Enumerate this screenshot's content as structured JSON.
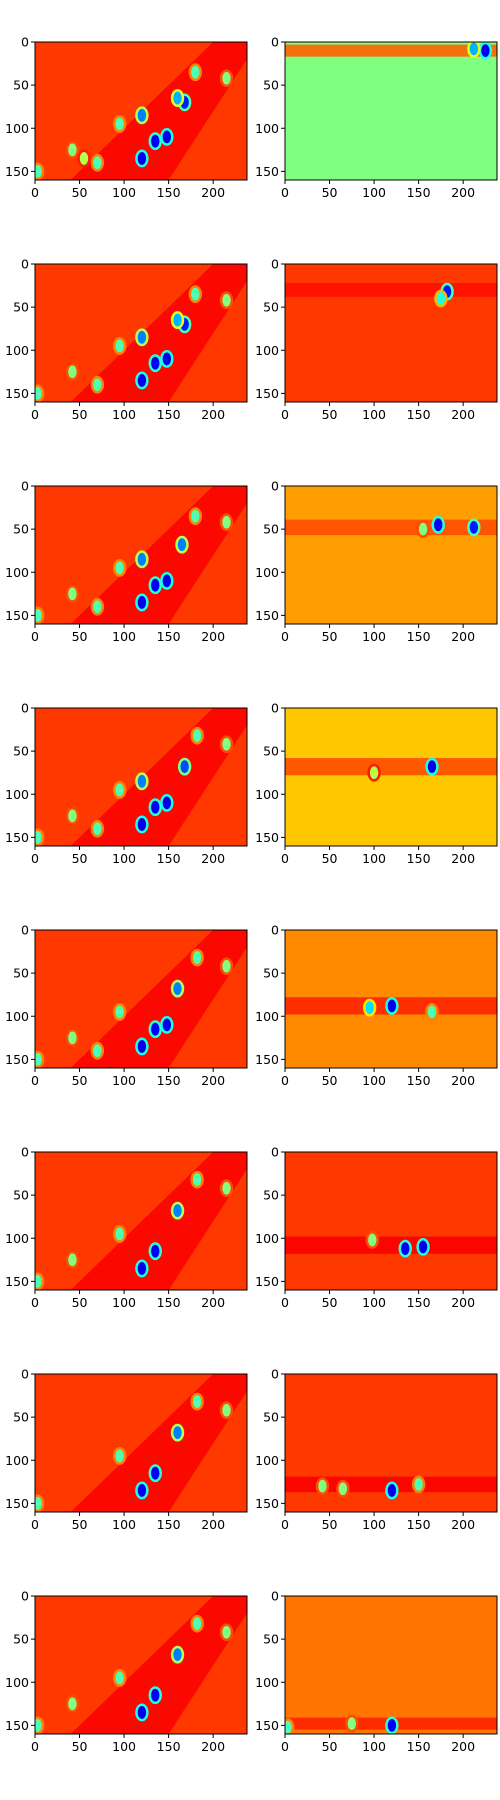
{
  "figure": {
    "rows": 8,
    "cols": 2,
    "colormap": "jet",
    "background": "#ffffff"
  },
  "chart_data": [
    {
      "type": "heatmap",
      "title": "",
      "xlabel": "",
      "ylabel": "",
      "xlim": [
        0,
        238
      ],
      "ylim": [
        160,
        0
      ],
      "xticks": [
        0,
        50,
        100,
        150,
        200
      ],
      "yticks": [
        0,
        50,
        100,
        150
      ],
      "grid": false,
      "base_value": 0.82,
      "features": [
        {
          "kind": "diagonal_band",
          "value": 0.88
        },
        {
          "kind": "blob",
          "x": 120,
          "y": 135,
          "value": 0.1
        },
        {
          "kind": "blob",
          "x": 135,
          "y": 115,
          "value": 0.12
        },
        {
          "kind": "blob",
          "x": 148,
          "y": 110,
          "value": 0.1
        },
        {
          "kind": "blob",
          "x": 168,
          "y": 70,
          "value": 0.15
        },
        {
          "kind": "blob",
          "x": 160,
          "y": 65,
          "value": 0.3
        },
        {
          "kind": "blob",
          "x": 120,
          "y": 85,
          "value": 0.25
        },
        {
          "kind": "blob",
          "x": 95,
          "y": 95,
          "value": 0.45
        },
        {
          "kind": "blob",
          "x": 180,
          "y": 35,
          "value": 0.45
        },
        {
          "kind": "blob",
          "x": 215,
          "y": 42,
          "value": 0.5
        },
        {
          "kind": "blob",
          "x": 42,
          "y": 125,
          "value": 0.5
        },
        {
          "kind": "blob",
          "x": 70,
          "y": 140,
          "value": 0.45
        },
        {
          "kind": "blob",
          "x": 55,
          "y": 135,
          "value": 0.55
        },
        {
          "kind": "blob",
          "x": 3,
          "y": 150,
          "value": 0.45
        }
      ]
    },
    {
      "type": "heatmap",
      "title": "",
      "xlabel": "",
      "ylabel": "",
      "xlim": [
        0,
        238
      ],
      "ylim": [
        160,
        0
      ],
      "xticks": [
        0,
        50,
        100,
        150,
        200
      ],
      "yticks": [
        0,
        50,
        100,
        150
      ],
      "grid": false,
      "base_value": 0.5,
      "features": [
        {
          "kind": "band",
          "y": 10,
          "height": 14,
          "value": 0.78
        },
        {
          "kind": "blob",
          "x": 225,
          "y": 10,
          "value": 0.1
        },
        {
          "kind": "blob",
          "x": 212,
          "y": 8,
          "value": 0.3
        }
      ]
    },
    {
      "type": "heatmap",
      "title": "",
      "xlabel": "",
      "ylabel": "",
      "xlim": [
        0,
        238
      ],
      "ylim": [
        160,
        0
      ],
      "xticks": [
        0,
        50,
        100,
        150,
        200
      ],
      "yticks": [
        0,
        50,
        100,
        150
      ],
      "grid": false,
      "base_value": 0.82,
      "features": [
        {
          "kind": "diagonal_band",
          "value": 0.88
        },
        {
          "kind": "blob",
          "x": 120,
          "y": 135,
          "value": 0.1
        },
        {
          "kind": "blob",
          "x": 135,
          "y": 115,
          "value": 0.12
        },
        {
          "kind": "blob",
          "x": 148,
          "y": 110,
          "value": 0.1
        },
        {
          "kind": "blob",
          "x": 168,
          "y": 70,
          "value": 0.15
        },
        {
          "kind": "blob",
          "x": 160,
          "y": 65,
          "value": 0.3
        },
        {
          "kind": "blob",
          "x": 120,
          "y": 85,
          "value": 0.25
        },
        {
          "kind": "blob",
          "x": 95,
          "y": 95,
          "value": 0.45
        },
        {
          "kind": "blob",
          "x": 180,
          "y": 35,
          "value": 0.45
        },
        {
          "kind": "blob",
          "x": 215,
          "y": 42,
          "value": 0.5
        },
        {
          "kind": "blob",
          "x": 42,
          "y": 125,
          "value": 0.5
        },
        {
          "kind": "blob",
          "x": 70,
          "y": 140,
          "value": 0.45
        },
        {
          "kind": "blob",
          "x": 3,
          "y": 150,
          "value": 0.45
        }
      ]
    },
    {
      "type": "heatmap",
      "title": "",
      "xlabel": "",
      "ylabel": "",
      "xlim": [
        0,
        238
      ],
      "ylim": [
        160,
        0
      ],
      "xticks": [
        0,
        50,
        100,
        150,
        200
      ],
      "yticks": [
        0,
        50,
        100,
        150
      ],
      "grid": false,
      "base_value": 0.82,
      "features": [
        {
          "kind": "band",
          "y": 30,
          "height": 16,
          "value": 0.86
        },
        {
          "kind": "blob",
          "x": 182,
          "y": 32,
          "value": 0.15
        },
        {
          "kind": "blob",
          "x": 175,
          "y": 40,
          "value": 0.4
        }
      ]
    },
    {
      "type": "heatmap",
      "title": "",
      "xlabel": "",
      "ylabel": "",
      "xlim": [
        0,
        238
      ],
      "ylim": [
        160,
        0
      ],
      "xticks": [
        0,
        50,
        100,
        150,
        200
      ],
      "yticks": [
        0,
        50,
        100,
        150
      ],
      "grid": false,
      "base_value": 0.82,
      "features": [
        {
          "kind": "diagonal_band",
          "value": 0.88
        },
        {
          "kind": "blob",
          "x": 120,
          "y": 135,
          "value": 0.1
        },
        {
          "kind": "blob",
          "x": 135,
          "y": 115,
          "value": 0.12
        },
        {
          "kind": "blob",
          "x": 148,
          "y": 110,
          "value": 0.1
        },
        {
          "kind": "blob",
          "x": 165,
          "y": 68,
          "value": 0.25
        },
        {
          "kind": "blob",
          "x": 120,
          "y": 85,
          "value": 0.25
        },
        {
          "kind": "blob",
          "x": 95,
          "y": 95,
          "value": 0.45
        },
        {
          "kind": "blob",
          "x": 180,
          "y": 35,
          "value": 0.45
        },
        {
          "kind": "blob",
          "x": 215,
          "y": 42,
          "value": 0.5
        },
        {
          "kind": "blob",
          "x": 42,
          "y": 125,
          "value": 0.5
        },
        {
          "kind": "blob",
          "x": 70,
          "y": 140,
          "value": 0.45
        },
        {
          "kind": "blob",
          "x": 3,
          "y": 150,
          "value": 0.45
        }
      ]
    },
    {
      "type": "heatmap",
      "title": "",
      "xlabel": "",
      "ylabel": "",
      "xlim": [
        0,
        238
      ],
      "ylim": [
        160,
        0
      ],
      "xticks": [
        0,
        50,
        100,
        150,
        200
      ],
      "yticks": [
        0,
        50,
        100,
        150
      ],
      "grid": false,
      "base_value": 0.72,
      "features": [
        {
          "kind": "band",
          "y": 48,
          "height": 18,
          "value": 0.8
        },
        {
          "kind": "blob",
          "x": 172,
          "y": 45,
          "value": 0.12
        },
        {
          "kind": "blob",
          "x": 212,
          "y": 48,
          "value": 0.15
        },
        {
          "kind": "blob",
          "x": 155,
          "y": 50,
          "value": 0.5
        }
      ]
    },
    {
      "type": "heatmap",
      "title": "",
      "xlabel": "",
      "ylabel": "",
      "xlim": [
        0,
        238
      ],
      "ylim": [
        160,
        0
      ],
      "xticks": [
        0,
        50,
        100,
        150,
        200
      ],
      "yticks": [
        0,
        50,
        100,
        150
      ],
      "grid": false,
      "base_value": 0.82,
      "features": [
        {
          "kind": "diagonal_band",
          "value": 0.88
        },
        {
          "kind": "blob",
          "x": 120,
          "y": 135,
          "value": 0.1
        },
        {
          "kind": "blob",
          "x": 135,
          "y": 115,
          "value": 0.12
        },
        {
          "kind": "blob",
          "x": 148,
          "y": 110,
          "value": 0.1
        },
        {
          "kind": "blob",
          "x": 168,
          "y": 68,
          "value": 0.2
        },
        {
          "kind": "blob",
          "x": 120,
          "y": 85,
          "value": 0.25
        },
        {
          "kind": "blob",
          "x": 95,
          "y": 95,
          "value": 0.45
        },
        {
          "kind": "blob",
          "x": 182,
          "y": 32,
          "value": 0.45
        },
        {
          "kind": "blob",
          "x": 215,
          "y": 42,
          "value": 0.5
        },
        {
          "kind": "blob",
          "x": 42,
          "y": 125,
          "value": 0.5
        },
        {
          "kind": "blob",
          "x": 70,
          "y": 140,
          "value": 0.45
        },
        {
          "kind": "blob",
          "x": 3,
          "y": 150,
          "value": 0.45
        }
      ]
    },
    {
      "type": "heatmap",
      "title": "",
      "xlabel": "",
      "ylabel": "",
      "xlim": [
        0,
        238
      ],
      "ylim": [
        160,
        0
      ],
      "xticks": [
        0,
        50,
        100,
        150,
        200
      ],
      "yticks": [
        0,
        50,
        100,
        150
      ],
      "grid": false,
      "base_value": 0.68,
      "features": [
        {
          "kind": "band",
          "y": 68,
          "height": 20,
          "value": 0.8
        },
        {
          "kind": "blob",
          "x": 165,
          "y": 68,
          "value": 0.1
        },
        {
          "kind": "blob",
          "x": 100,
          "y": 75,
          "value": 0.55
        }
      ]
    },
    {
      "type": "heatmap",
      "title": "",
      "xlabel": "",
      "ylabel": "",
      "xlim": [
        0,
        238
      ],
      "ylim": [
        160,
        0
      ],
      "xticks": [
        0,
        50,
        100,
        150,
        200
      ],
      "yticks": [
        0,
        50,
        100,
        150
      ],
      "grid": false,
      "base_value": 0.82,
      "features": [
        {
          "kind": "diagonal_band",
          "value": 0.88
        },
        {
          "kind": "blob",
          "x": 120,
          "y": 135,
          "value": 0.1
        },
        {
          "kind": "blob",
          "x": 135,
          "y": 115,
          "value": 0.12
        },
        {
          "kind": "blob",
          "x": 148,
          "y": 110,
          "value": 0.1
        },
        {
          "kind": "blob",
          "x": 160,
          "y": 68,
          "value": 0.25
        },
        {
          "kind": "blob",
          "x": 95,
          "y": 95,
          "value": 0.45
        },
        {
          "kind": "blob",
          "x": 182,
          "y": 32,
          "value": 0.45
        },
        {
          "kind": "blob",
          "x": 215,
          "y": 42,
          "value": 0.5
        },
        {
          "kind": "blob",
          "x": 42,
          "y": 125,
          "value": 0.5
        },
        {
          "kind": "blob",
          "x": 70,
          "y": 140,
          "value": 0.45
        },
        {
          "kind": "blob",
          "x": 3,
          "y": 150,
          "value": 0.45
        }
      ]
    },
    {
      "type": "heatmap",
      "title": "",
      "xlabel": "",
      "ylabel": "",
      "xlim": [
        0,
        238
      ],
      "ylim": [
        160,
        0
      ],
      "xticks": [
        0,
        50,
        100,
        150,
        200
      ],
      "yticks": [
        0,
        50,
        100,
        150
      ],
      "grid": false,
      "base_value": 0.74,
      "features": [
        {
          "kind": "band",
          "y": 88,
          "height": 20,
          "value": 0.84
        },
        {
          "kind": "blob",
          "x": 120,
          "y": 88,
          "value": 0.1
        },
        {
          "kind": "blob",
          "x": 95,
          "y": 90,
          "value": 0.35
        },
        {
          "kind": "blob",
          "x": 165,
          "y": 95,
          "value": 0.45
        }
      ]
    },
    {
      "type": "heatmap",
      "title": "",
      "xlabel": "",
      "ylabel": "",
      "xlim": [
        0,
        238
      ],
      "ylim": [
        160,
        0
      ],
      "xticks": [
        0,
        50,
        100,
        150,
        200
      ],
      "yticks": [
        0,
        50,
        100,
        150
      ],
      "grid": false,
      "base_value": 0.82,
      "features": [
        {
          "kind": "diagonal_band",
          "value": 0.88
        },
        {
          "kind": "blob",
          "x": 120,
          "y": 135,
          "value": 0.1
        },
        {
          "kind": "blob",
          "x": 135,
          "y": 115,
          "value": 0.12
        },
        {
          "kind": "blob",
          "x": 160,
          "y": 68,
          "value": 0.25
        },
        {
          "kind": "blob",
          "x": 95,
          "y": 95,
          "value": 0.45
        },
        {
          "kind": "blob",
          "x": 182,
          "y": 32,
          "value": 0.45
        },
        {
          "kind": "blob",
          "x": 215,
          "y": 42,
          "value": 0.5
        },
        {
          "kind": "blob",
          "x": 42,
          "y": 125,
          "value": 0.5
        },
        {
          "kind": "blob",
          "x": 3,
          "y": 150,
          "value": 0.45
        }
      ]
    },
    {
      "type": "heatmap",
      "title": "",
      "xlabel": "",
      "ylabel": "",
      "xlim": [
        0,
        238
      ],
      "ylim": [
        160,
        0
      ],
      "xticks": [
        0,
        50,
        100,
        150,
        200
      ],
      "yticks": [
        0,
        50,
        100,
        150
      ],
      "grid": false,
      "base_value": 0.82,
      "features": [
        {
          "kind": "band",
          "y": 108,
          "height": 20,
          "value": 0.88
        },
        {
          "kind": "blob",
          "x": 135,
          "y": 112,
          "value": 0.12
        },
        {
          "kind": "blob",
          "x": 155,
          "y": 110,
          "value": 0.1
        },
        {
          "kind": "blob",
          "x": 98,
          "y": 102,
          "value": 0.5
        }
      ]
    },
    {
      "type": "heatmap",
      "title": "",
      "xlabel": "",
      "ylabel": "",
      "xlim": [
        0,
        238
      ],
      "ylim": [
        160,
        0
      ],
      "xticks": [
        0,
        50,
        100,
        150,
        200
      ],
      "yticks": [
        0,
        50,
        100,
        150
      ],
      "grid": false,
      "base_value": 0.82,
      "features": [
        {
          "kind": "diagonal_band",
          "value": 0.88
        },
        {
          "kind": "blob",
          "x": 120,
          "y": 135,
          "value": 0.1
        },
        {
          "kind": "blob",
          "x": 135,
          "y": 115,
          "value": 0.12
        },
        {
          "kind": "blob",
          "x": 160,
          "y": 68,
          "value": 0.25
        },
        {
          "kind": "blob",
          "x": 95,
          "y": 95,
          "value": 0.45
        },
        {
          "kind": "blob",
          "x": 182,
          "y": 32,
          "value": 0.45
        },
        {
          "kind": "blob",
          "x": 215,
          "y": 42,
          "value": 0.5
        },
        {
          "kind": "blob",
          "x": 3,
          "y": 150,
          "value": 0.45
        }
      ]
    },
    {
      "type": "heatmap",
      "title": "",
      "xlabel": "",
      "ylabel": "",
      "xlim": [
        0,
        238
      ],
      "ylim": [
        160,
        0
      ],
      "xticks": [
        0,
        50,
        100,
        150,
        200
      ],
      "yticks": [
        0,
        50,
        100,
        150
      ],
      "grid": false,
      "base_value": 0.82,
      "features": [
        {
          "kind": "band",
          "y": 128,
          "height": 18,
          "value": 0.88
        },
        {
          "kind": "blob",
          "x": 120,
          "y": 135,
          "value": 0.1
        },
        {
          "kind": "blob",
          "x": 42,
          "y": 130,
          "value": 0.5
        },
        {
          "kind": "blob",
          "x": 65,
          "y": 133,
          "value": 0.5
        },
        {
          "kind": "blob",
          "x": 150,
          "y": 128,
          "value": 0.45
        }
      ]
    },
    {
      "type": "heatmap",
      "title": "",
      "xlabel": "",
      "ylabel": "",
      "xlim": [
        0,
        238
      ],
      "ylim": [
        160,
        0
      ],
      "xticks": [
        0,
        50,
        100,
        150,
        200
      ],
      "yticks": [
        0,
        50,
        100,
        150
      ],
      "grid": false,
      "base_value": 0.82,
      "features": [
        {
          "kind": "diagonal_band",
          "value": 0.88
        },
        {
          "kind": "blob",
          "x": 120,
          "y": 135,
          "value": 0.1
        },
        {
          "kind": "blob",
          "x": 135,
          "y": 115,
          "value": 0.12
        },
        {
          "kind": "blob",
          "x": 160,
          "y": 68,
          "value": 0.25
        },
        {
          "kind": "blob",
          "x": 95,
          "y": 95,
          "value": 0.45
        },
        {
          "kind": "blob",
          "x": 182,
          "y": 32,
          "value": 0.45
        },
        {
          "kind": "blob",
          "x": 215,
          "y": 42,
          "value": 0.5
        },
        {
          "kind": "blob",
          "x": 42,
          "y": 125,
          "value": 0.5
        },
        {
          "kind": "blob",
          "x": 3,
          "y": 150,
          "value": 0.45
        }
      ]
    },
    {
      "type": "heatmap",
      "title": "",
      "xlabel": "",
      "ylabel": "",
      "xlim": [
        0,
        238
      ],
      "ylim": [
        160,
        0
      ],
      "xticks": [
        0,
        50,
        100,
        150,
        200
      ],
      "yticks": [
        0,
        50,
        100,
        150
      ],
      "grid": false,
      "base_value": 0.76,
      "features": [
        {
          "kind": "band",
          "y": 148,
          "height": 14,
          "value": 0.84
        },
        {
          "kind": "blob",
          "x": 3,
          "y": 152,
          "value": 0.45
        },
        {
          "kind": "blob",
          "x": 75,
          "y": 148,
          "value": 0.5
        },
        {
          "kind": "blob",
          "x": 120,
          "y": 150,
          "value": 0.12
        }
      ]
    }
  ]
}
